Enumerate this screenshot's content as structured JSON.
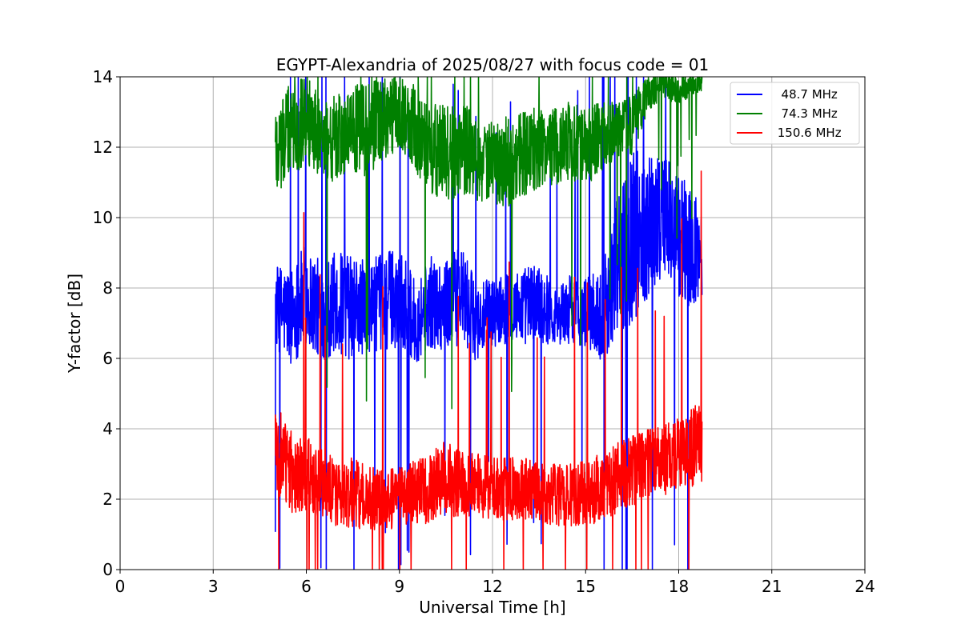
{
  "chart_data": {
    "type": "line",
    "title": "EGYPT-Alexandria of 2025/08/27 with focus code = 01",
    "xlabel": "Universal Time [h]",
    "ylabel": "Y-factor [dB]",
    "xlim": [
      0,
      24
    ],
    "ylim": [
      0,
      14
    ],
    "x_ticks": [
      "0",
      "3",
      "6",
      "9",
      "12",
      "15",
      "18",
      "21",
      "24"
    ],
    "y_ticks": [
      "0",
      "2",
      "4",
      "6",
      "8",
      "10",
      "12",
      "14"
    ],
    "grid": true,
    "legend_position": "top-right",
    "series": [
      {
        "name": "  48.7 MHz",
        "color": "#0000ff",
        "x": [
          5.0,
          5.5,
          6.0,
          6.5,
          7.0,
          7.5,
          8.0,
          8.5,
          9.0,
          9.5,
          10.0,
          10.5,
          11.0,
          11.5,
          12.0,
          12.5,
          13.0,
          13.5,
          14.0,
          14.5,
          15.0,
          15.5,
          16.0,
          16.5,
          17.0,
          17.5,
          18.0,
          18.5,
          18.75
        ],
        "base": [
          7.5,
          7.2,
          7.8,
          7.3,
          7.6,
          7.4,
          7.5,
          7.6,
          7.8,
          7.0,
          7.6,
          7.5,
          7.8,
          7.0,
          7.3,
          7.4,
          7.5,
          7.6,
          7.2,
          7.4,
          7.3,
          7.2,
          8.5,
          9.5,
          9.8,
          10.2,
          9.5,
          9.0,
          9.0
        ],
        "amp": [
          1.2,
          1.4,
          1.5,
          1.4,
          1.5,
          1.5,
          1.3,
          1.4,
          1.5,
          1.2,
          1.3,
          1.3,
          1.4,
          1.1,
          1.0,
          1.0,
          1.1,
          1.2,
          0.8,
          1.0,
          1.0,
          1.3,
          2.0,
          2.5,
          2.2,
          1.8,
          1.8,
          1.7,
          1.2
        ]
      },
      {
        "name": "  74.3 MHz",
        "color": "#008000",
        "x": [
          5.0,
          5.5,
          6.0,
          6.5,
          7.0,
          7.5,
          8.0,
          8.5,
          9.0,
          9.5,
          10.0,
          10.5,
          11.0,
          11.5,
          12.0,
          12.5,
          13.0,
          13.5,
          14.0,
          14.5,
          15.0,
          15.5,
          16.0,
          16.5,
          17.0,
          17.5,
          18.0,
          18.5,
          18.75
        ],
        "base": [
          12.0,
          12.5,
          12.8,
          12.3,
          12.2,
          12.4,
          12.5,
          12.8,
          13.0,
          12.5,
          12.0,
          11.8,
          12.0,
          11.7,
          11.5,
          11.6,
          11.8,
          12.0,
          12.0,
          12.2,
          12.0,
          12.3,
          12.5,
          12.6,
          13.5,
          13.8,
          13.6,
          13.8,
          13.9
        ],
        "amp": [
          1.5,
          1.3,
          1.3,
          1.2,
          1.3,
          1.4,
          1.3,
          1.2,
          1.0,
          1.3,
          1.3,
          1.4,
          1.3,
          1.2,
          1.2,
          1.3,
          1.2,
          1.2,
          1.1,
          1.1,
          1.1,
          1.0,
          0.8,
          0.9,
          0.5,
          0.4,
          0.4,
          0.3,
          0.3
        ]
      },
      {
        "name": " 150.6 MHz",
        "color": "#ff0000",
        "x": [
          5.0,
          5.5,
          6.0,
          6.5,
          7.0,
          7.5,
          8.0,
          8.5,
          9.0,
          9.5,
          10.0,
          10.5,
          11.0,
          11.5,
          12.0,
          12.5,
          13.0,
          13.5,
          14.0,
          14.5,
          15.0,
          15.5,
          16.0,
          16.5,
          17.0,
          17.5,
          18.0,
          18.5,
          18.75
        ],
        "base": [
          3.5,
          2.8,
          2.7,
          2.4,
          2.2,
          2.2,
          2.0,
          2.0,
          2.1,
          2.2,
          2.3,
          2.6,
          2.5,
          2.4,
          2.3,
          2.3,
          2.3,
          2.2,
          2.1,
          2.1,
          2.2,
          2.3,
          2.6,
          2.8,
          3.0,
          3.1,
          3.3,
          3.5,
          3.6
        ],
        "amp": [
          1.5,
          1.2,
          1.1,
          1.0,
          1.0,
          1.0,
          0.9,
          0.9,
          0.9,
          0.9,
          1.0,
          1.1,
          1.0,
          0.9,
          0.9,
          0.9,
          0.9,
          0.9,
          0.9,
          0.9,
          0.9,
          1.0,
          1.0,
          1.0,
          1.0,
          1.0,
          1.0,
          1.2,
          1.2
        ]
      }
    ]
  }
}
